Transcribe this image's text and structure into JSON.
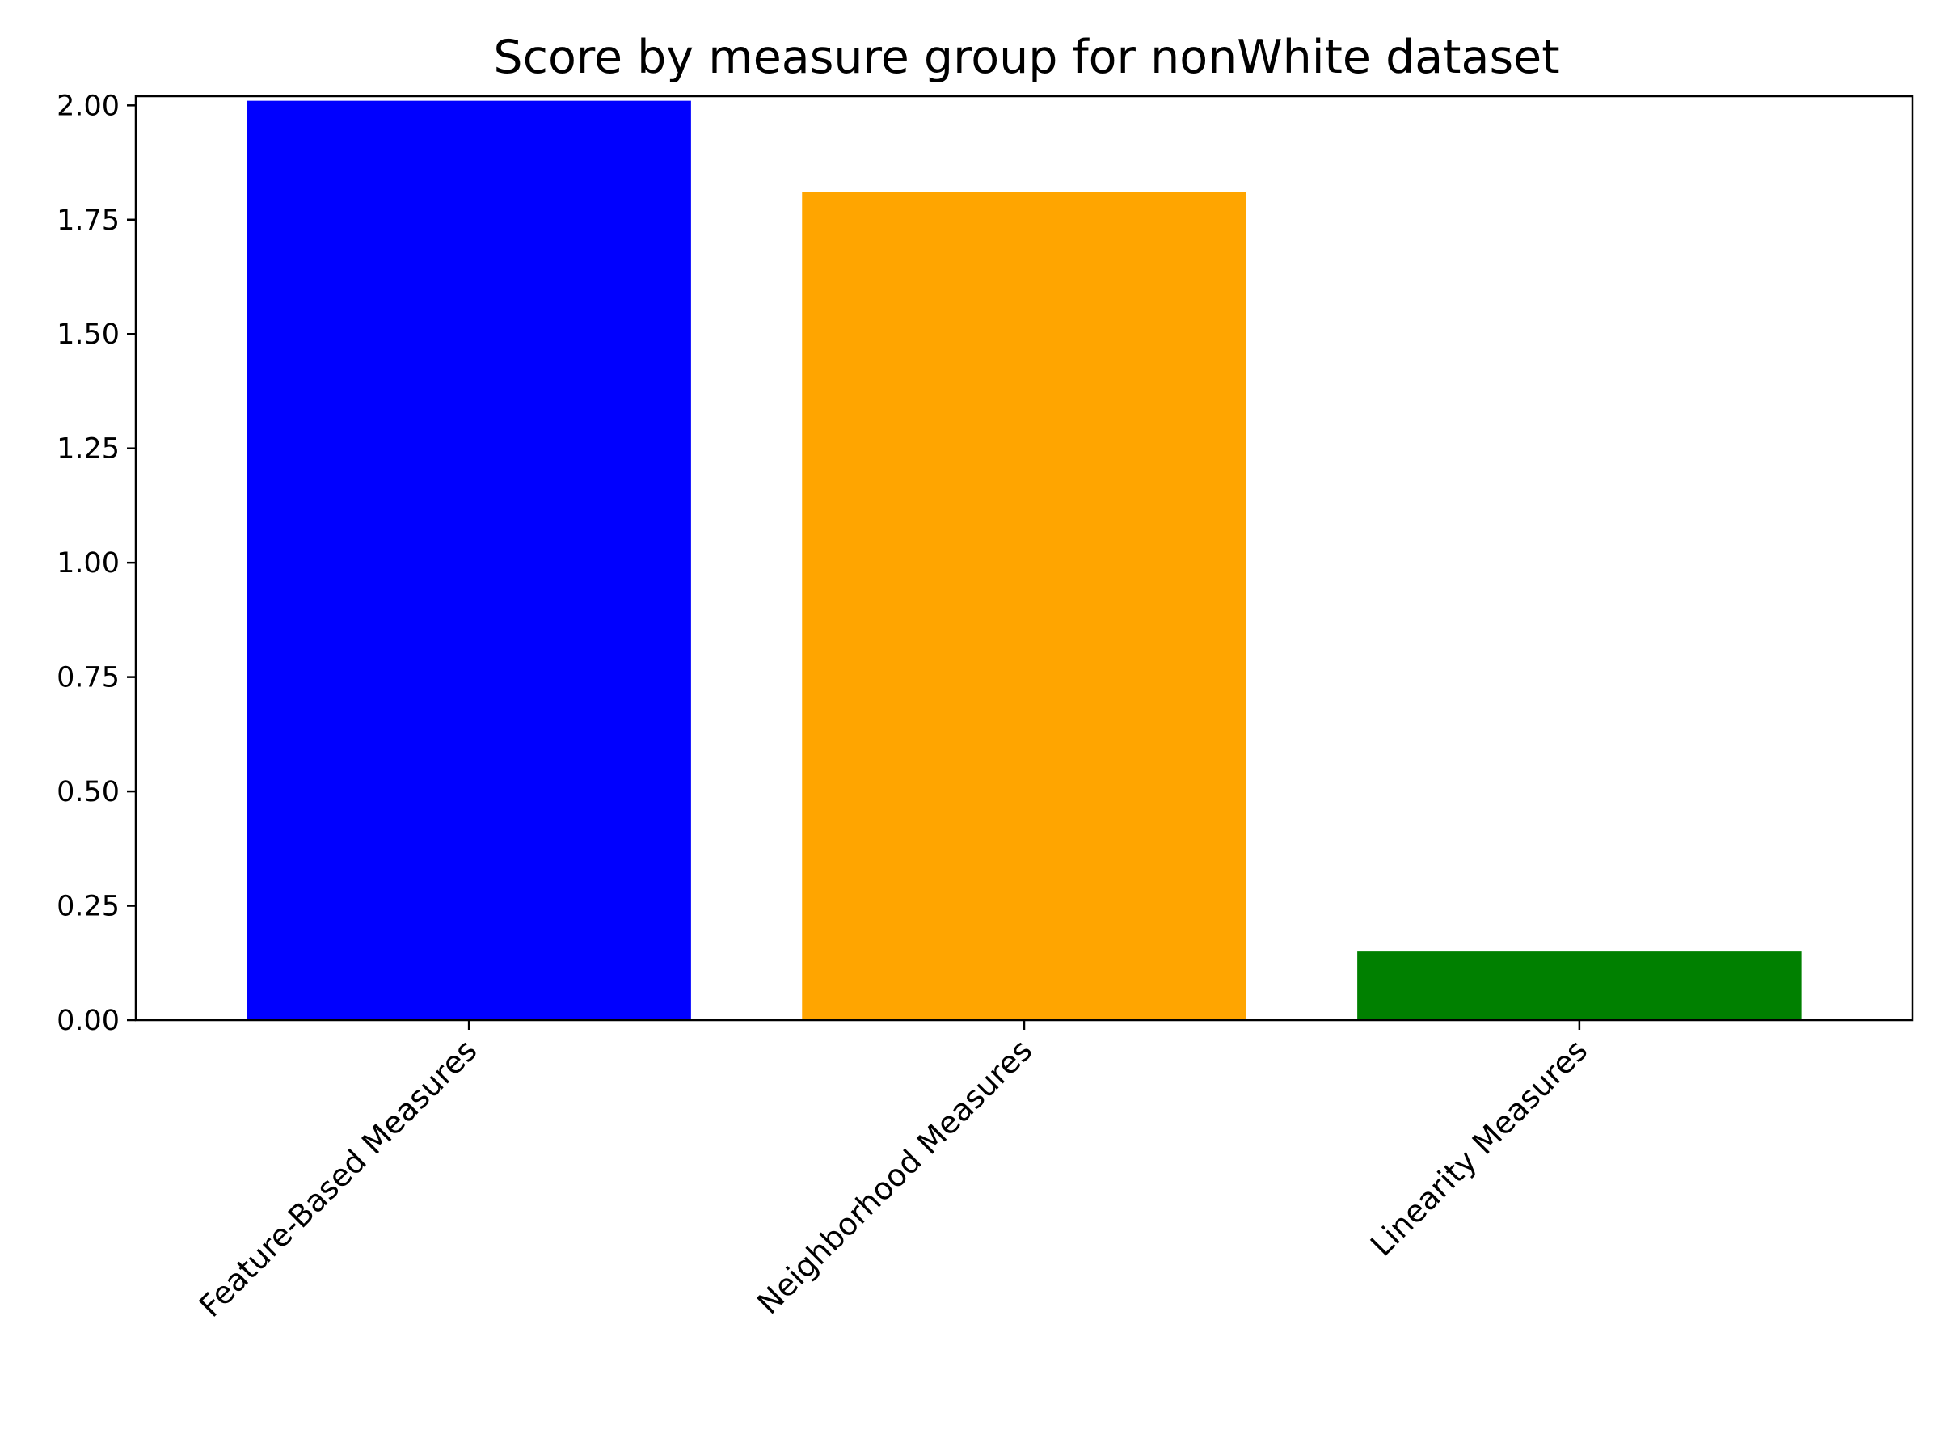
{
  "chart_data": {
    "type": "bar",
    "title": "Score by measure group for nonWhite dataset",
    "xlabel": "",
    "ylabel": "",
    "categories": [
      "Feature-Based Measures",
      "Neighborhood Measures",
      "Linearity Measures"
    ],
    "values": [
      2.01,
      1.81,
      0.15
    ],
    "colors": [
      "#0000ff",
      "#ffa500",
      "#008000"
    ],
    "ylim": [
      0,
      2.02
    ],
    "yticks": [
      "0.00",
      "0.25",
      "0.50",
      "0.75",
      "1.00",
      "1.25",
      "1.50",
      "1.75",
      "2.00"
    ],
    "grid": false,
    "legend": "none"
  }
}
